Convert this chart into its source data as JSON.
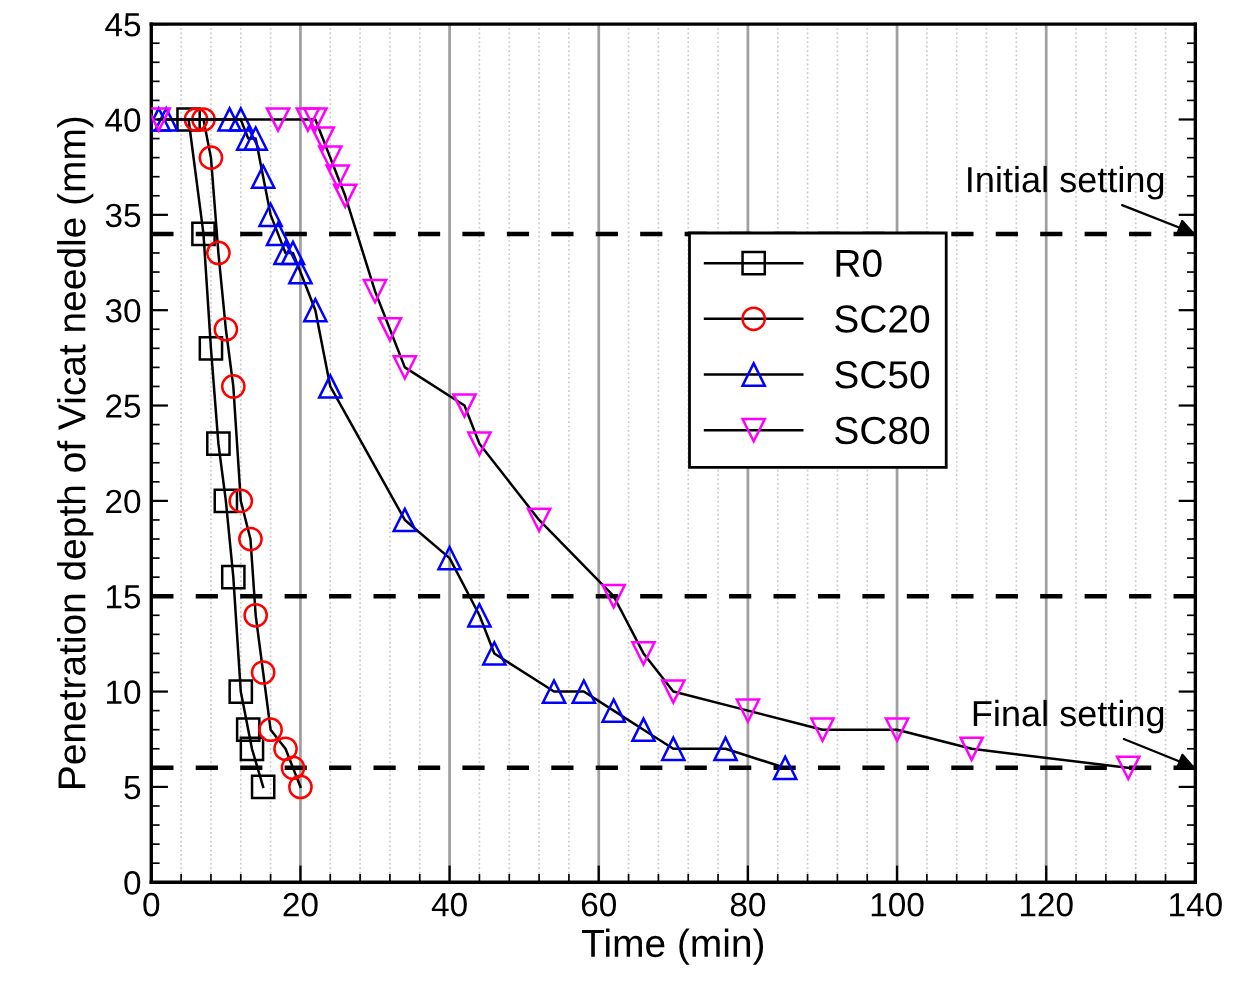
{
  "chart_data": {
    "type": "line",
    "xlabel": "Time (min)",
    "ylabel": "Penetration depth of Vicat needle (mm)",
    "xlim": [
      0,
      140
    ],
    "ylim": [
      0,
      45
    ],
    "xticks": [
      0,
      20,
      40,
      60,
      80,
      100,
      120,
      140
    ],
    "yticks": [
      0,
      5,
      10,
      15,
      20,
      25,
      30,
      35,
      40,
      45
    ],
    "grid": "x",
    "legend": "right",
    "series": [
      {
        "name": "R0",
        "color": "#000000",
        "marker": "square",
        "x": [
          5,
          7,
          8,
          9,
          10,
          11,
          12,
          13,
          13.5,
          15
        ],
        "values": [
          40,
          34,
          28,
          23,
          20,
          16,
          10,
          8,
          7,
          5
        ]
      },
      {
        "name": "SC20",
        "color": "#ff0000",
        "marker": "circle",
        "x": [
          6,
          7,
          8,
          9,
          10,
          11,
          12,
          13.3,
          14,
          15,
          16,
          18,
          19,
          20
        ],
        "values": [
          40,
          40,
          38,
          33,
          29,
          26,
          20,
          18,
          14,
          11,
          8,
          7,
          6,
          5
        ]
      },
      {
        "name": "SC50",
        "color": "#0000ff",
        "marker": "triangle",
        "x": [
          1,
          2,
          10.5,
          12,
          13,
          14,
          15,
          16,
          17,
          18,
          19,
          20,
          22,
          24,
          34,
          40,
          44,
          46,
          54,
          58,
          62,
          66,
          70,
          77,
          85
        ],
        "values": [
          40,
          40,
          40,
          40,
          39,
          39,
          37,
          35,
          34,
          33,
          33,
          32,
          30,
          26,
          19,
          17,
          14,
          12,
          10,
          10,
          9,
          8,
          7,
          7,
          6
        ]
      },
      {
        "name": "SC80",
        "color": "#ff00ff",
        "marker": "triangle_down",
        "x": [
          1,
          17,
          21,
          22,
          23,
          24,
          25,
          26,
          30,
          32,
          34,
          42,
          44,
          52,
          62,
          66,
          70,
          80,
          90,
          100,
          110,
          131
        ],
        "values": [
          40,
          40,
          40,
          40,
          39,
          38,
          37,
          36,
          31,
          29,
          27,
          25,
          23,
          19,
          15,
          12,
          10,
          9,
          8,
          8,
          7,
          6
        ]
      }
    ],
    "ref_lines": [
      {
        "axis": "y",
        "value": 34,
        "color": "#000000",
        "line_style": "dashed"
      },
      {
        "axis": "y",
        "value": 15,
        "color": "#000000",
        "line_style": "dashed"
      },
      {
        "axis": "y",
        "value": 6,
        "color": "#000000",
        "line_style": "dashed"
      }
    ],
    "annotations": [
      {
        "text": "Initial setting",
        "x": 140,
        "y": 34
      },
      {
        "text": "Final setting",
        "x": 140,
        "y": 6
      }
    ]
  }
}
